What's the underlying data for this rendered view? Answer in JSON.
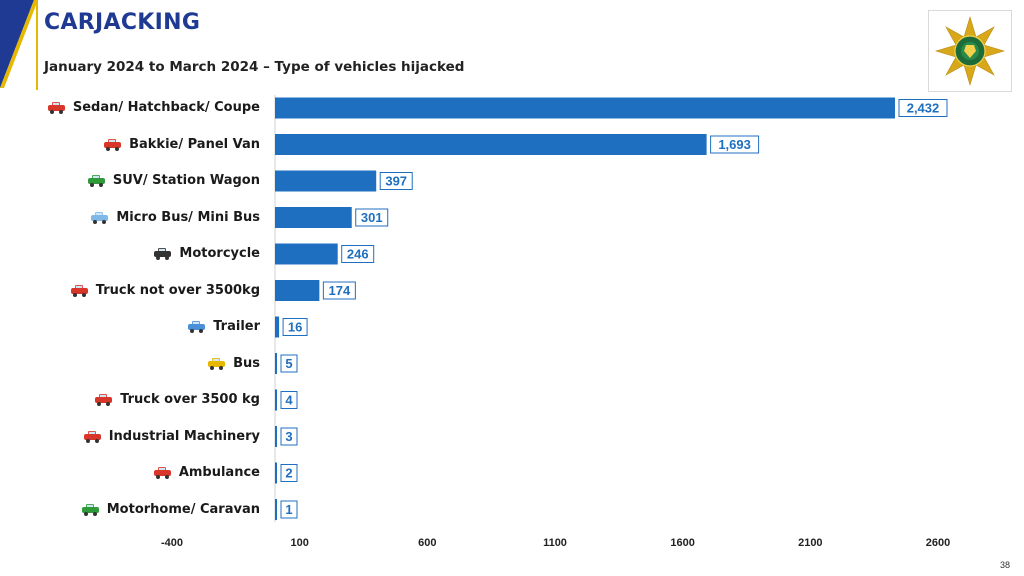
{
  "header": {
    "title": "CARJACKING",
    "subtitle": "January 2024 to March 2024 – Type of vehicles hijacked"
  },
  "logo": {
    "text": "SOUTH AFRICAN POLICE SERVICE"
  },
  "page_number": "38",
  "colors": {
    "bar": "#1f6fc0",
    "value_box_border": "#1f6fc0",
    "value_text": "#1f6fc0",
    "title": "#1f3a93"
  },
  "icons": [
    "car-icon",
    "bakkie-icon",
    "suv-icon",
    "minibus-icon",
    "motorcycle-icon",
    "truck-icon",
    "trailer-icon",
    "bus-icon",
    "truck-icon",
    "factory-icon",
    "ambulance-icon",
    "motorhome-icon"
  ],
  "chart_data": {
    "type": "bar",
    "orientation": "horizontal",
    "categories": [
      "Sedan/ Hatchback/ Coupe",
      "Bakkie/ Panel Van",
      "SUV/ Station Wagon",
      "Micro Bus/ Mini Bus",
      "Motorcycle",
      "Truck not over 3500kg",
      "Trailer",
      "Bus",
      "Truck over 3500 kg",
      "Industrial Machinery",
      "Ambulance",
      "Motorhome/ Caravan"
    ],
    "values": [
      2432,
      1693,
      397,
      301,
      246,
      174,
      16,
      5,
      4,
      3,
      2,
      1
    ],
    "value_labels": [
      "2,432",
      "1,693",
      "397",
      "301",
      "246",
      "174",
      "16",
      "5",
      "4",
      "3",
      "2",
      "1"
    ],
    "x_ticks": [
      "-400",
      "100",
      "600",
      "1100",
      "1600",
      "2100",
      "2600"
    ],
    "xlim": [
      -400,
      2600
    ],
    "grid": false,
    "legend": "none"
  }
}
